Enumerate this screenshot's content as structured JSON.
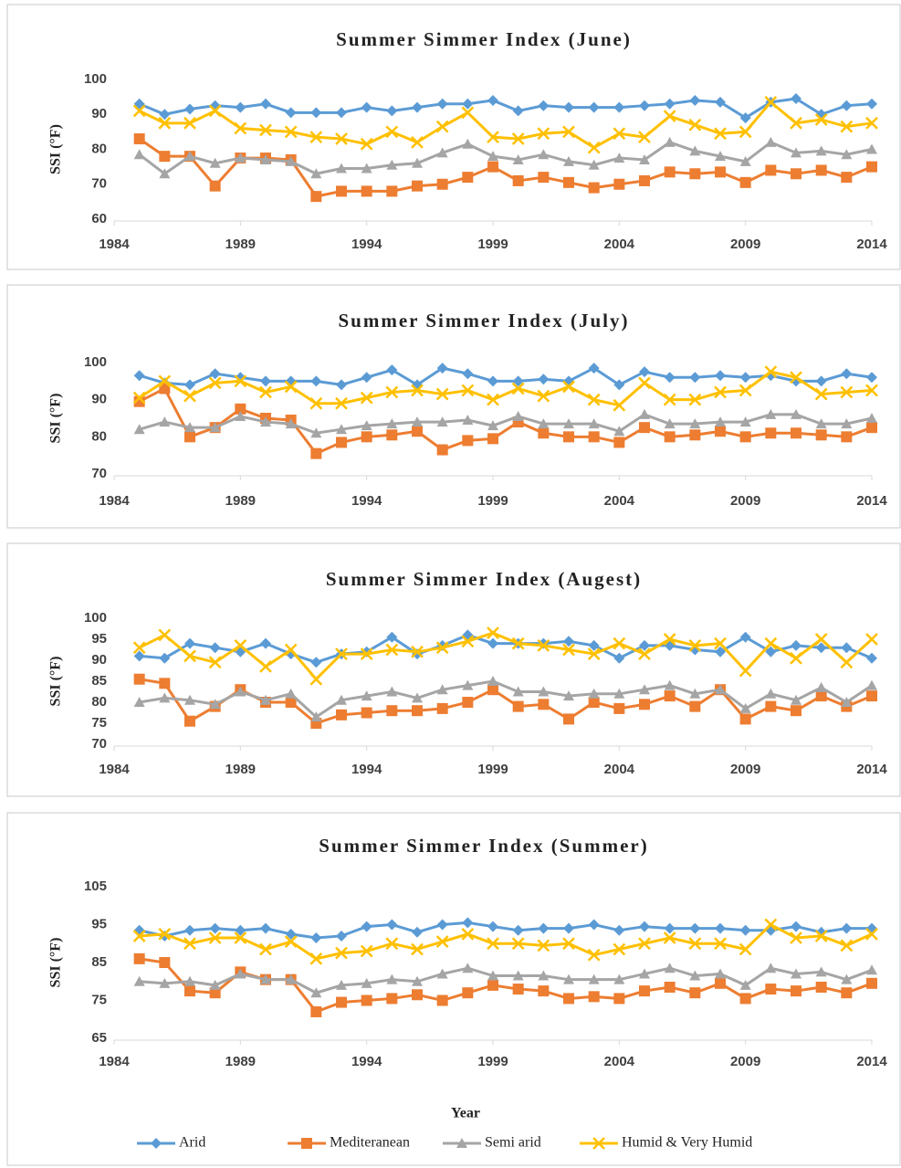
{
  "chart_data": [
    {
      "type": "line",
      "title": "Summer Simmer Index (June)",
      "ylabel": "SSI (°F)",
      "x": [
        1985,
        1986,
        1987,
        1988,
        1989,
        1990,
        1991,
        1992,
        1993,
        1994,
        1995,
        1996,
        1997,
        1998,
        1999,
        2000,
        2001,
        2002,
        2003,
        2004,
        2005,
        2006,
        2007,
        2008,
        2009,
        2010,
        2011,
        2012,
        2013,
        2014
      ],
      "xlim": [
        1984,
        2014
      ],
      "xticks": [
        1984,
        1989,
        1994,
        1999,
        2004,
        2009,
        2014
      ],
      "ylim": [
        60,
        100
      ],
      "yticks": [
        60,
        70,
        80,
        90,
        100
      ],
      "series": [
        {
          "color": "#5b9bd5",
          "marker": "diamond",
          "values": [
            93,
            90,
            91.5,
            92.5,
            92,
            93,
            90.5,
            90.5,
            90.5,
            92,
            91,
            92,
            93,
            93,
            94,
            91,
            92.5,
            92,
            92,
            92,
            92.5,
            93,
            94,
            93.5,
            89,
            93.5,
            94.5,
            90,
            92.5,
            93
          ]
        },
        {
          "color": "#ed7d31",
          "marker": "square",
          "values": [
            83,
            78,
            78,
            69.5,
            77.5,
            77.5,
            77,
            66.5,
            68,
            68,
            68,
            69.5,
            70,
            72,
            75,
            71,
            72,
            70.5,
            69,
            70,
            71,
            73.5,
            73,
            73.5,
            70.5,
            74,
            73,
            74,
            72,
            75
          ]
        },
        {
          "color": "#a5a5a5",
          "marker": "triangle",
          "values": [
            78.5,
            73,
            78,
            76,
            77.5,
            77,
            76.5,
            73,
            74.5,
            74.5,
            75.5,
            76,
            79,
            81.5,
            78,
            77,
            78.5,
            76.5,
            75.5,
            77.5,
            77,
            82,
            79.5,
            78,
            76.5,
            82,
            79,
            79.5,
            78.5,
            80
          ]
        },
        {
          "color": "#ffc000",
          "marker": "x",
          "values": [
            91,
            87.5,
            87.5,
            91,
            86,
            85.5,
            85,
            83.5,
            83,
            81.5,
            85,
            82,
            86.5,
            90.5,
            83.5,
            83,
            84.5,
            85,
            80.5,
            84.5,
            83.5,
            89.5,
            87,
            84.5,
            85,
            93.5,
            87.5,
            88.5,
            86.5,
            87.5
          ]
        }
      ]
    },
    {
      "type": "line",
      "title": "Summer Simmer Index (July)",
      "ylabel": "SSI (°F)",
      "x": [
        1985,
        1986,
        1987,
        1988,
        1989,
        1990,
        1991,
        1992,
        1993,
        1994,
        1995,
        1996,
        1997,
        1998,
        1999,
        2000,
        2001,
        2002,
        2003,
        2004,
        2005,
        2006,
        2007,
        2008,
        2009,
        2010,
        2011,
        2012,
        2013,
        2014
      ],
      "xlim": [
        1984,
        2014
      ],
      "xticks": [
        1984,
        1989,
        1994,
        1999,
        2004,
        2009,
        2014
      ],
      "ylim": [
        70,
        100
      ],
      "yticks": [
        70,
        80,
        90,
        100
      ],
      "series": [
        {
          "color": "#5b9bd5",
          "marker": "diamond",
          "values": [
            96.5,
            94.5,
            94,
            97,
            96,
            95,
            95,
            95,
            94,
            96,
            98,
            94,
            98.5,
            97,
            95,
            95,
            95.5,
            95,
            98.5,
            94,
            97.5,
            96,
            96,
            96.5,
            96,
            96.5,
            95,
            95,
            97,
            96
          ]
        },
        {
          "color": "#ed7d31",
          "marker": "square",
          "values": [
            89.5,
            93,
            80,
            82.5,
            87.5,
            85,
            84.5,
            75.5,
            78.5,
            80,
            80.5,
            81.5,
            76.5,
            79,
            79.5,
            84,
            81,
            80,
            80,
            78.5,
            82.5,
            80,
            80.5,
            81.5,
            80,
            81,
            81,
            80.5,
            80,
            82.5
          ]
        },
        {
          "color": "#a5a5a5",
          "marker": "triangle",
          "values": [
            82,
            84,
            82.5,
            82.5,
            85.5,
            84,
            83.5,
            81,
            82,
            83,
            83.5,
            84,
            84,
            84.5,
            83,
            85.5,
            83.5,
            83.5,
            83.5,
            81.5,
            86,
            83.5,
            83.5,
            84,
            84,
            86,
            86,
            83.5,
            83.5,
            85
          ]
        },
        {
          "color": "#ffc000",
          "marker": "x",
          "values": [
            90.5,
            95,
            91,
            94.5,
            95,
            92,
            93.5,
            89,
            89,
            90.5,
            92,
            92.5,
            91.5,
            92.5,
            90,
            93,
            91,
            93.5,
            90,
            88.5,
            94.5,
            90,
            90,
            92,
            92.5,
            97.5,
            96,
            91.5,
            92,
            92.5
          ]
        }
      ]
    },
    {
      "type": "line",
      "title": "Summer Simmer Index (Augest)",
      "ylabel": "SSI (°F)",
      "x": [
        1985,
        1986,
        1987,
        1988,
        1989,
        1990,
        1991,
        1992,
        1993,
        1994,
        1995,
        1996,
        1997,
        1998,
        1999,
        2000,
        2001,
        2002,
        2003,
        2004,
        2005,
        2006,
        2007,
        2008,
        2009,
        2010,
        2011,
        2012,
        2013,
        2014
      ],
      "xlim": [
        1984,
        2014
      ],
      "xticks": [
        1984,
        1989,
        1994,
        1999,
        2004,
        2009,
        2014
      ],
      "ylim": [
        70,
        100
      ],
      "yticks": [
        70,
        75,
        80,
        85,
        90,
        95,
        100
      ],
      "series": [
        {
          "color": "#5b9bd5",
          "marker": "diamond",
          "values": [
            91,
            90.5,
            94,
            93,
            92,
            94,
            91.5,
            89.5,
            91.5,
            92,
            95.5,
            91.5,
            93.5,
            96,
            94,
            94,
            94,
            94.5,
            93.5,
            90.5,
            93.5,
            93.5,
            92.5,
            92,
            95.5,
            92,
            93.5,
            93,
            93,
            90.5
          ]
        },
        {
          "color": "#ed7d31",
          "marker": "square",
          "values": [
            85.5,
            84.5,
            75.5,
            79,
            83,
            80,
            80,
            75,
            77,
            77.5,
            78,
            78,
            78.5,
            80,
            83,
            79,
            79.5,
            76,
            80,
            78.5,
            79.5,
            81.5,
            79,
            83,
            76,
            79,
            78,
            81.5,
            79,
            81.5
          ]
        },
        {
          "color": "#a5a5a5",
          "marker": "triangle",
          "values": [
            80,
            81,
            80.5,
            79.5,
            82.5,
            80.5,
            82,
            76.5,
            80.5,
            81.5,
            82.5,
            81,
            83,
            84,
            85,
            82.5,
            82.5,
            81.5,
            82,
            82,
            83,
            84,
            82,
            83,
            78.5,
            82,
            80.5,
            83.5,
            80,
            84
          ]
        },
        {
          "color": "#ffc000",
          "marker": "x",
          "values": [
            93,
            96,
            91,
            89.5,
            93.5,
            88.5,
            92.5,
            85.5,
            91.5,
            91.5,
            92.5,
            92,
            93,
            94.5,
            96.5,
            94,
            93.5,
            92.5,
            91.5,
            94,
            91.5,
            95,
            93.5,
            94,
            87.5,
            94,
            90.5,
            95,
            89.5,
            95
          ]
        }
      ]
    },
    {
      "type": "line",
      "title": "Summer Simmer Index (Summer)",
      "ylabel": "SSI (°F)",
      "xlabel": "Year",
      "x": [
        1985,
        1986,
        1987,
        1988,
        1989,
        1990,
        1991,
        1992,
        1993,
        1994,
        1995,
        1996,
        1997,
        1998,
        1999,
        2000,
        2001,
        2002,
        2003,
        2004,
        2005,
        2006,
        2007,
        2008,
        2009,
        2010,
        2011,
        2012,
        2013,
        2014
      ],
      "xlim": [
        1984,
        2014
      ],
      "xticks": [
        1984,
        1989,
        1994,
        1999,
        2004,
        2009,
        2014
      ],
      "ylim": [
        65,
        105
      ],
      "yticks": [
        65,
        75,
        85,
        95,
        105
      ],
      "series": [
        {
          "name": "Arid",
          "color": "#5b9bd5",
          "marker": "diamond",
          "values": [
            93.5,
            92,
            93.5,
            94,
            93.5,
            94,
            92.5,
            91.5,
            92,
            94.5,
            95,
            93,
            95,
            95.5,
            94.5,
            93.5,
            94,
            94,
            95,
            93.5,
            94.5,
            94,
            94,
            94,
            93.5,
            93.5,
            94.5,
            93,
            94,
            94
          ]
        },
        {
          "name": "Mediteranean",
          "color": "#ed7d31",
          "marker": "square",
          "values": [
            86,
            85,
            77.5,
            77,
            82.5,
            80.5,
            80.5,
            72,
            74.5,
            75,
            75.5,
            76.5,
            75,
            77,
            79,
            78,
            77.5,
            75.5,
            76,
            75.5,
            77.5,
            78.5,
            77,
            79.5,
            75.5,
            78,
            77.5,
            78.5,
            77,
            79.5
          ]
        },
        {
          "name": "Semi arid",
          "color": "#a5a5a5",
          "marker": "triangle",
          "values": [
            80,
            79.5,
            80,
            79,
            82,
            80.5,
            80.5,
            77,
            79,
            79.5,
            80.5,
            80,
            82,
            83.5,
            81.5,
            81.5,
            81.5,
            80.5,
            80.5,
            80.5,
            82,
            83.5,
            81.5,
            82,
            79,
            83.5,
            82,
            82.5,
            80.5,
            83
          ]
        },
        {
          "name": "Humid & Very Humid",
          "color": "#ffc000",
          "marker": "x",
          "values": [
            92,
            92.5,
            90,
            91.5,
            91.5,
            88.5,
            90.5,
            86,
            87.5,
            88,
            90,
            88.5,
            90.5,
            92.5,
            90,
            90,
            89.5,
            90,
            87,
            88.5,
            90,
            91.5,
            90,
            90,
            88.5,
            95,
            91.5,
            92,
            89.5,
            92.5
          ]
        }
      ]
    }
  ]
}
